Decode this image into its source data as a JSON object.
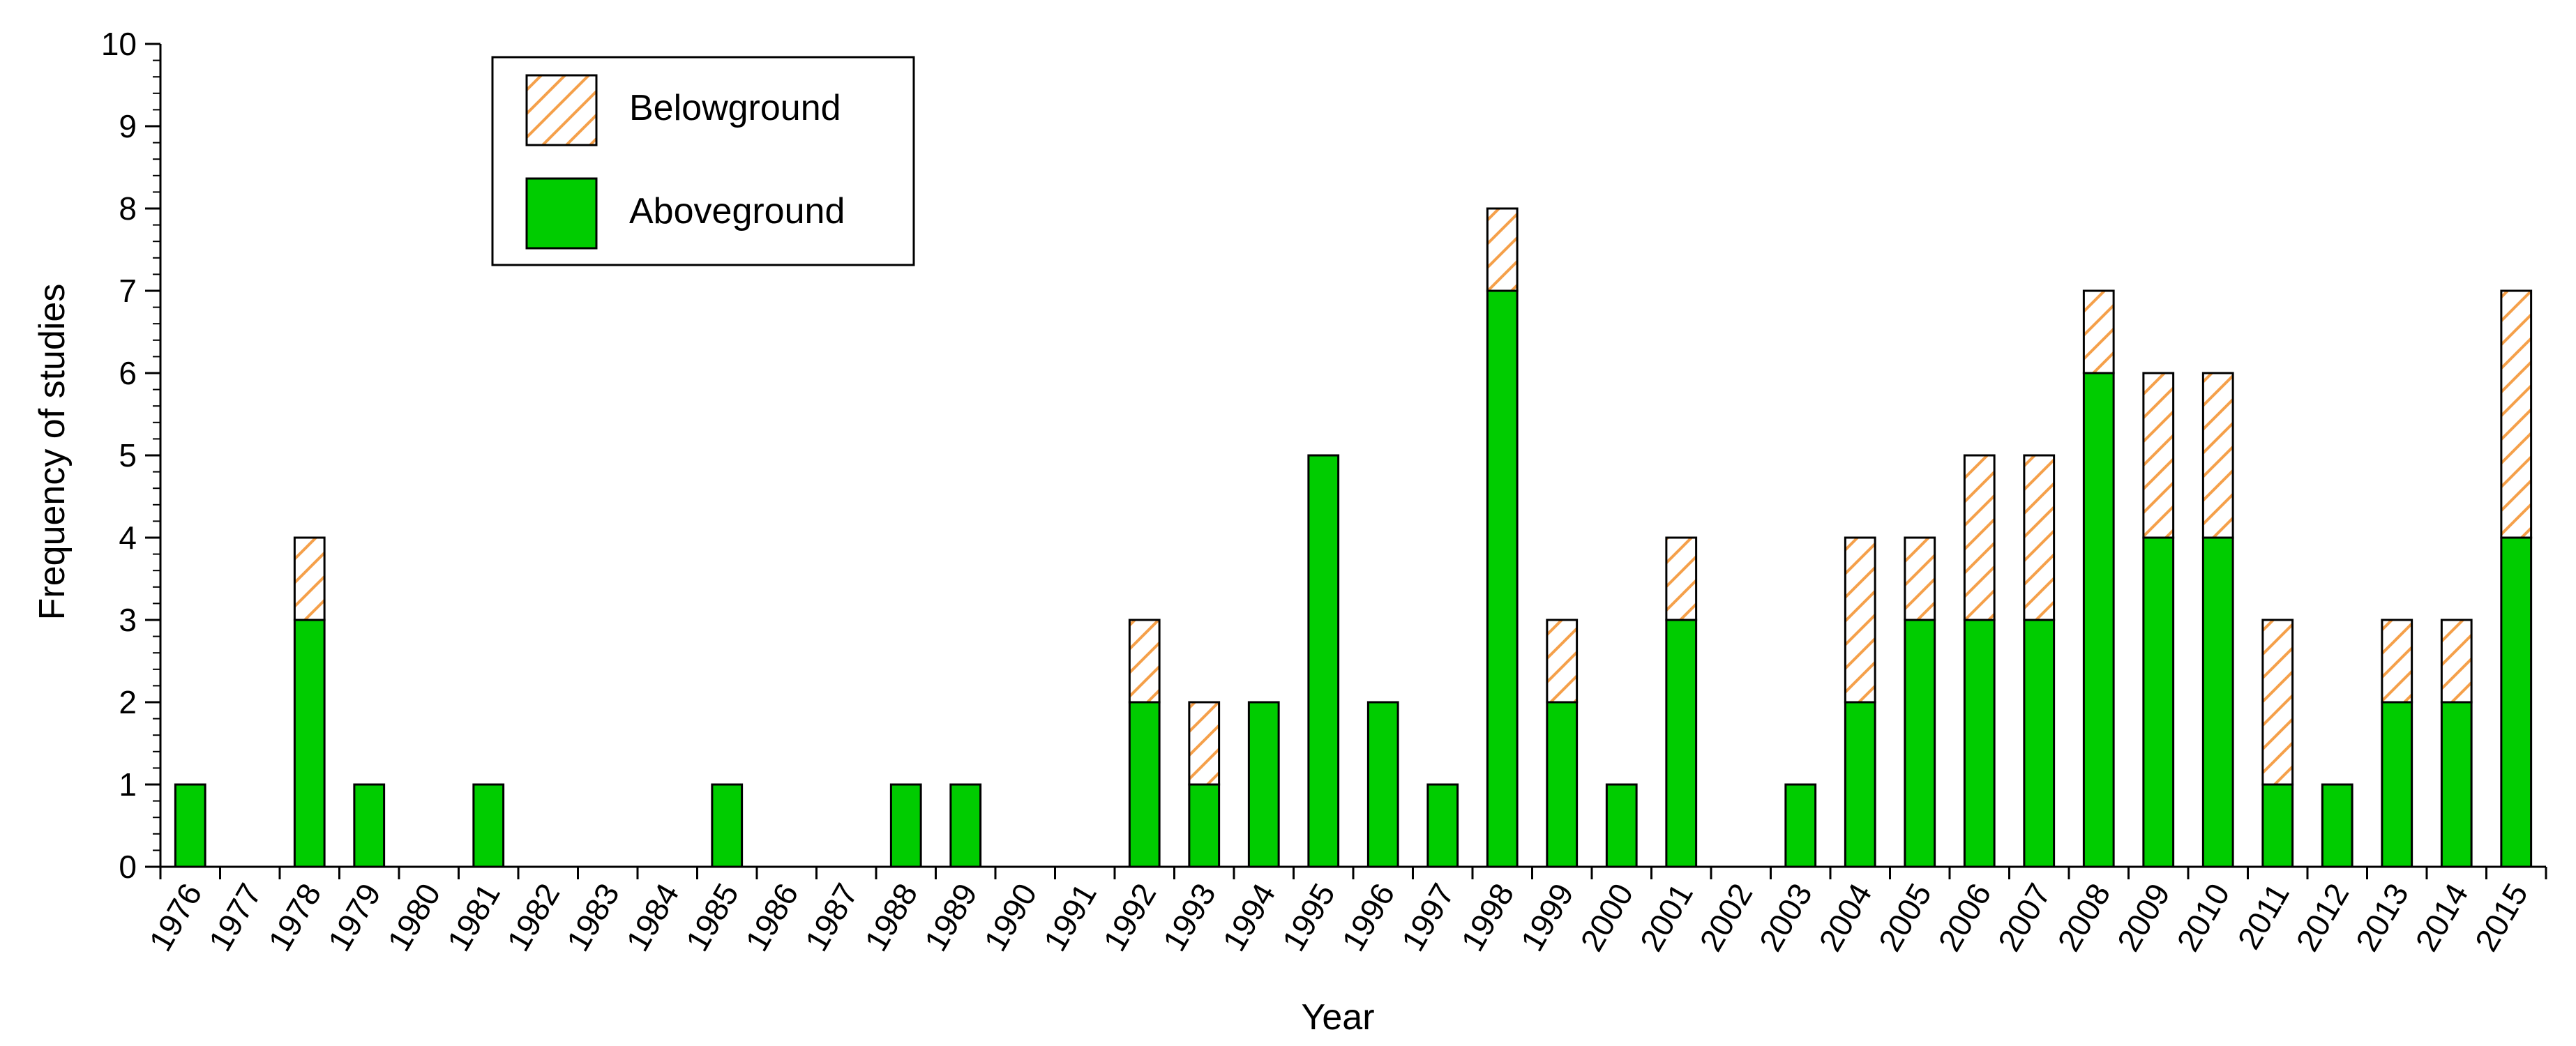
{
  "chart_data": {
    "type": "bar",
    "stacked": true,
    "xlabel": "Year",
    "ylabel": "Frequency of studies",
    "ylim": [
      0,
      10
    ],
    "yticks": [
      0,
      1,
      2,
      3,
      4,
      5,
      6,
      7,
      8,
      9,
      10
    ],
    "grid": false,
    "legend_position": "top-left",
    "categories": [
      "1976",
      "1977",
      "1978",
      "1979",
      "1980",
      "1981",
      "1982",
      "1983",
      "1984",
      "1985",
      "1986",
      "1987",
      "1988",
      "1989",
      "1990",
      "1991",
      "1992",
      "1993",
      "1994",
      "1995",
      "1996",
      "1997",
      "1998",
      "1999",
      "2000",
      "2001",
      "2002",
      "2003",
      "2004",
      "2005",
      "2006",
      "2007",
      "2008",
      "2009",
      "2010",
      "2011",
      "2012",
      "2013",
      "2014",
      "2015"
    ],
    "series": [
      {
        "name": "Aboveground",
        "color": "#00cc00",
        "pattern": "solid",
        "values": [
          1,
          0,
          3,
          1,
          0,
          1,
          0,
          0,
          0,
          1,
          0,
          0,
          1,
          1,
          0,
          0,
          2,
          1,
          2,
          5,
          2,
          1,
          7,
          2,
          1,
          3,
          0,
          1,
          2,
          3,
          3,
          3,
          6,
          4,
          4,
          1,
          1,
          2,
          2,
          4
        ]
      },
      {
        "name": "Belowground",
        "color": "#f5a04a",
        "pattern": "hatched",
        "values": [
          0,
          0,
          1,
          0,
          0,
          0,
          0,
          0,
          0,
          0,
          0,
          0,
          0,
          0,
          0,
          0,
          1,
          1,
          0,
          0,
          0,
          0,
          1,
          1,
          0,
          1,
          0,
          0,
          2,
          1,
          2,
          2,
          1,
          2,
          2,
          2,
          0,
          1,
          1,
          3
        ]
      }
    ],
    "legend": [
      {
        "label": "Belowground",
        "series": "Belowground"
      },
      {
        "label": "Aboveground",
        "series": "Aboveground"
      }
    ]
  }
}
